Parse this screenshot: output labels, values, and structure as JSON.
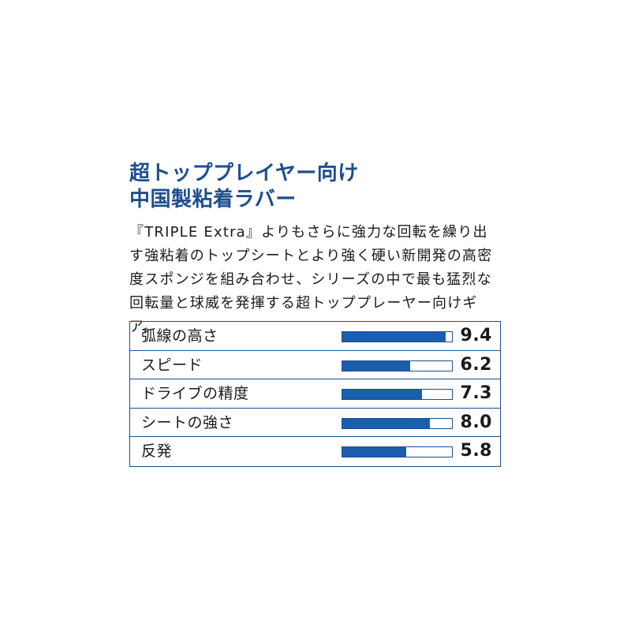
{
  "headline": {
    "line1": "超トッププレイヤー向け",
    "line2": "中国製粘着ラバー"
  },
  "description": "『TRIPLE Extra』よりもさらに強力な回転を繰り出す強粘着のトップシートとより強く硬い新開発の高密度スポンジを組み合わせ、シリーズの中で最も猛烈な回転量と球威を発揮する超トッププレーヤー向けギア。",
  "specs": [
    {
      "label": "弧線の高さ",
      "value": "9.4",
      "level": 0.94
    },
    {
      "label": "スピード",
      "value": "6.2",
      "level": 0.62
    },
    {
      "label": "ドライブの精度",
      "value": "7.3",
      "level": 0.73
    },
    {
      "label": "シートの強さ",
      "value": "8.0",
      "level": 0.8
    },
    {
      "label": "反発",
      "value": "5.8",
      "level": 0.58
    }
  ],
  "colors": {
    "accent": "#1f4e8f",
    "bar_fill": "#1a5fad"
  }
}
